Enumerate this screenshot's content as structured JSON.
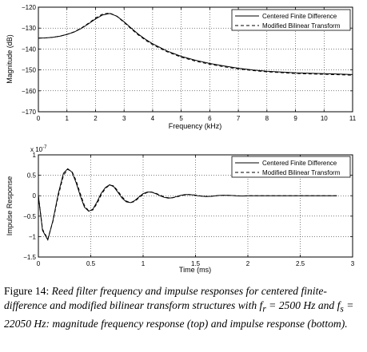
{
  "chart_data": [
    {
      "type": "line",
      "xlabel": "Frequency (kHz)",
      "ylabel": "Magnitude (dB)",
      "xlim": [
        0,
        11
      ],
      "ylim": [
        -170,
        -120
      ],
      "xticks": [
        0,
        1,
        2,
        3,
        4,
        5,
        6,
        7,
        8,
        9,
        10,
        11
      ],
      "yticks": [
        -120,
        -130,
        -140,
        -150,
        -160,
        -170
      ],
      "grid": true,
      "legend_position": "top-right",
      "series": [
        {
          "name": "Centered Finite Difference",
          "style": "solid",
          "x": [
            0,
            0.25,
            0.5,
            0.75,
            1.0,
            1.25,
            1.5,
            1.75,
            2.0,
            2.25,
            2.5,
            2.75,
            3.0,
            3.25,
            3.5,
            3.75,
            4.0,
            4.5,
            5.0,
            5.5,
            6.0,
            6.5,
            7.0,
            7.5,
            8.0,
            8.5,
            9.0,
            9.5,
            10.0,
            10.5,
            11.0
          ],
          "y": [
            -134.8,
            -134.7,
            -134.4,
            -133.9,
            -133.0,
            -131.9,
            -130.2,
            -128.0,
            -125.6,
            -123.7,
            -123.0,
            -124.3,
            -127.0,
            -130.0,
            -132.9,
            -135.4,
            -137.5,
            -140.9,
            -143.5,
            -145.4,
            -146.9,
            -148.1,
            -149.2,
            -150.0,
            -150.6,
            -151.0,
            -151.4,
            -151.6,
            -151.8,
            -152.0,
            -152.2
          ]
        },
        {
          "name": "Modified Bilinear Transform",
          "style": "dashed",
          "x": [
            0,
            0.25,
            0.5,
            0.75,
            1.0,
            1.25,
            1.5,
            1.75,
            2.0,
            2.25,
            2.5,
            2.75,
            3.0,
            3.25,
            3.5,
            3.75,
            4.0,
            4.5,
            5.0,
            5.5,
            6.0,
            6.5,
            7.0,
            7.5,
            8.0,
            8.5,
            9.0,
            9.5,
            10.0,
            10.5,
            11.0
          ],
          "y": [
            -134.8,
            -134.7,
            -134.4,
            -133.9,
            -133.0,
            -131.8,
            -130.0,
            -127.7,
            -125.2,
            -123.3,
            -122.8,
            -124.4,
            -127.3,
            -130.4,
            -133.3,
            -135.8,
            -137.9,
            -141.3,
            -143.9,
            -145.8,
            -147.3,
            -148.5,
            -149.5,
            -150.3,
            -150.9,
            -151.3,
            -151.7,
            -151.9,
            -152.1,
            -152.3,
            -152.5
          ]
        }
      ]
    },
    {
      "type": "line",
      "xlabel": "Time (ms)",
      "ylabel": "Impulse Response",
      "exponent_label": "x 10",
      "exponent_power": "-7",
      "xlim": [
        0,
        3
      ],
      "ylim": [
        -1.5,
        1
      ],
      "xticks": [
        0,
        0.5,
        1,
        1.5,
        2,
        2.5,
        3
      ],
      "yticks": [
        1,
        0.5,
        0,
        -0.5,
        -1,
        -1.5
      ],
      "grid": true,
      "legend_position": "top-right",
      "series": [
        {
          "name": "Centered Finite Difference",
          "style": "solid",
          "x": [
            0,
            0.04,
            0.09,
            0.14,
            0.19,
            0.24,
            0.28,
            0.32,
            0.36,
            0.4,
            0.44,
            0.48,
            0.52,
            0.56,
            0.6,
            0.64,
            0.68,
            0.72,
            0.76,
            0.8,
            0.84,
            0.88,
            0.92,
            0.96,
            1.0,
            1.04,
            1.08,
            1.12,
            1.16,
            1.2,
            1.24,
            1.28,
            1.32,
            1.36,
            1.4,
            1.44,
            1.48,
            1.52,
            1.56,
            1.6,
            1.64,
            1.68,
            1.72,
            1.76,
            1.8,
            1.84,
            1.88,
            1.92,
            1.96,
            2.0,
            2.05,
            2.1,
            2.15,
            2.2,
            2.25,
            2.3,
            2.4,
            2.5,
            2.6,
            2.7,
            2.8,
            2.85
          ],
          "y": [
            0,
            -0.85,
            -1.08,
            -0.6,
            0.05,
            0.55,
            0.66,
            0.58,
            0.32,
            0.0,
            -0.28,
            -0.38,
            -0.33,
            -0.15,
            0.06,
            0.2,
            0.27,
            0.22,
            0.08,
            -0.06,
            -0.15,
            -0.17,
            -0.12,
            -0.03,
            0.05,
            0.09,
            0.09,
            0.05,
            0.0,
            -0.04,
            -0.06,
            -0.05,
            -0.02,
            0.01,
            0.03,
            0.03,
            0.02,
            0.0,
            -0.01,
            -0.02,
            -0.015,
            -0.005,
            0.005,
            0.01,
            0.01,
            0.005,
            0.0,
            -0.005,
            -0.005,
            0.0,
            0.0,
            0.0,
            0.0,
            0.0,
            0.0,
            0.0,
            0.0,
            0.0,
            0.0,
            0.0,
            0.0,
            0.0
          ]
        },
        {
          "name": "Modified Bilinear Transform",
          "style": "dashed",
          "x": [
            0,
            0.04,
            0.09,
            0.14,
            0.19,
            0.24,
            0.28,
            0.32,
            0.36,
            0.4,
            0.44,
            0.48,
            0.52,
            0.56,
            0.6,
            0.64,
            0.68,
            0.72,
            0.76,
            0.8,
            0.84,
            0.88,
            0.92,
            0.96,
            1.0,
            1.04,
            1.08,
            1.12,
            1.16,
            1.2,
            1.24,
            1.28,
            1.32,
            1.36,
            1.4,
            1.44,
            1.48,
            1.52,
            1.56,
            1.6,
            1.64,
            1.68,
            1.72,
            1.76,
            1.8,
            1.84,
            1.88,
            1.92,
            1.96,
            2.0,
            2.05,
            2.1,
            2.15,
            2.2,
            2.25,
            2.3,
            2.4,
            2.5,
            2.6,
            2.7,
            2.8,
            2.85
          ],
          "y": [
            0,
            -0.82,
            -1.06,
            -0.62,
            0.0,
            0.5,
            0.64,
            0.6,
            0.37,
            0.05,
            -0.24,
            -0.37,
            -0.35,
            -0.19,
            0.02,
            0.18,
            0.26,
            0.24,
            0.11,
            -0.03,
            -0.13,
            -0.17,
            -0.14,
            -0.05,
            0.03,
            0.08,
            0.09,
            0.06,
            0.02,
            -0.03,
            -0.05,
            -0.05,
            -0.03,
            0.0,
            0.02,
            0.03,
            0.02,
            0.01,
            -0.01,
            -0.015,
            -0.015,
            -0.008,
            0.003,
            0.008,
            0.01,
            0.006,
            0.001,
            -0.004,
            -0.005,
            -0.002,
            0.0,
            0.0,
            0.0,
            0.0,
            0.0,
            0.0,
            0.0,
            0.0,
            0.0,
            0.0,
            0.0,
            0.0
          ]
        }
      ]
    }
  ],
  "caption": {
    "lead": "Figure 14:",
    "body": "Reed filter frequency and impulse responses for centered finite-difference and modified bilinear transform structures with f",
    "sub_r": "r",
    "eq1": " = 2500 Hz and f",
    "sub_s": "s",
    "eq2": " = 22050 Hz: magnitude frequency response (top) and impulse response (bottom)."
  }
}
